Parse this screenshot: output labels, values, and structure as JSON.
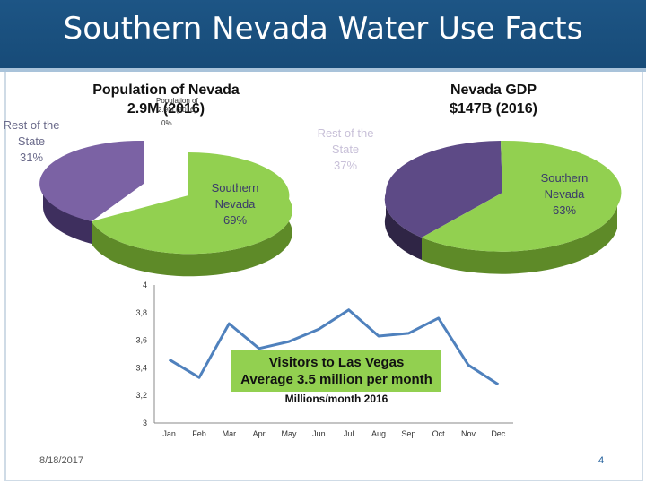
{
  "slide": {
    "title": "Southern Nevada Water Use Facts",
    "date": "8/18/2017",
    "page_number": "4"
  },
  "population_pie": {
    "title_line1": "Population of Nevada",
    "title_line2": "2.9M (2016)",
    "overlap_text1": "Population of",
    "overlap_text2": "2.9M (2016)",
    "overlap_text3": "0%",
    "slices": [
      {
        "label_line1": "Rest of the",
        "label_line2": "State",
        "label_line3": "31%",
        "value": 31,
        "color": "#7b62a4"
      },
      {
        "label_line1": "Southern",
        "label_line2": "Nevada",
        "label_line3": "69%",
        "value": 69,
        "color": "#92d050"
      }
    ]
  },
  "gdp_pie": {
    "title_line1": "Nevada GDP",
    "title_line2": "$147B (2016)",
    "slices": [
      {
        "label_line1": "Rest of the",
        "label_line2": "State",
        "label_line3": "37%",
        "value": 37,
        "color": "#5d4a86"
      },
      {
        "label_line1": "Southern",
        "label_line2": "Nevada",
        "label_line3": "63%",
        "value": 63,
        "color": "#92d050"
      }
    ]
  },
  "visitors_box": {
    "line1": "Visitors to Las Vegas",
    "line2": "Average 3.5 million per month",
    "subtitle": "Millions/month 2016"
  },
  "chart_data": {
    "type": "line",
    "categories": [
      "Jan",
      "Feb",
      "Mar",
      "Apr",
      "May",
      "Jun",
      "Jul",
      "Aug",
      "Sep",
      "Oct",
      "Nov",
      "Dec"
    ],
    "series": [
      {
        "values": [
          3.46,
          3.33,
          3.72,
          3.54,
          3.59,
          3.68,
          3.82,
          3.63,
          3.65,
          3.76,
          3.42,
          3.28
        ]
      }
    ],
    "ylim": [
      3,
      4
    ],
    "y_ticks": [
      "3",
      "3,2",
      "3,4",
      "3,6",
      "3,8",
      "4"
    ],
    "grid": false,
    "line_color": "#4f81bd"
  }
}
